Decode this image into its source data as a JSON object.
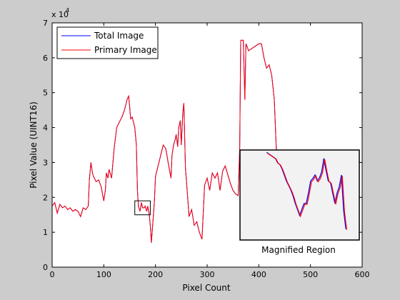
{
  "chart_data": {
    "type": "line",
    "title": "",
    "xlabel": "Pixel Count",
    "ylabel": "Pixel Value (UINT16)",
    "xlim": [
      0,
      600
    ],
    "ylim": [
      0,
      70000
    ],
    "xticks": [
      0,
      100,
      200,
      300,
      400,
      500,
      600
    ],
    "xtick_labels": [
      "0",
      "100",
      "200",
      "300",
      "400",
      "500",
      "600"
    ],
    "yticks": [
      0,
      10000,
      20000,
      30000,
      40000,
      50000,
      60000,
      70000
    ],
    "ytick_labels": [
      "0",
      "1",
      "2",
      "3",
      "4",
      "5",
      "6",
      "7"
    ],
    "y_exponent_label": "x 10",
    "y_exponent": "4",
    "grid": false,
    "legend_position": "top-left",
    "series": [
      {
        "name": "Total Image",
        "color": "#0000ff",
        "x": [
          0,
          5,
          10,
          15,
          20,
          25,
          30,
          35,
          40,
          45,
          50,
          55,
          60,
          65,
          70,
          72,
          75,
          78,
          80,
          85,
          90,
          95,
          100,
          103,
          105,
          108,
          110,
          115,
          120,
          125,
          130,
          135,
          140,
          145,
          148,
          150,
          152,
          155,
          160,
          163,
          165,
          167,
          170,
          173,
          175,
          178,
          180,
          183,
          185,
          188,
          190,
          192,
          195,
          198,
          200,
          205,
          210,
          215,
          220,
          225,
          230,
          232,
          235,
          238,
          240,
          243,
          245,
          248,
          250,
          253,
          255,
          258,
          260,
          265,
          270,
          275,
          280,
          285,
          290,
          295,
          300,
          305,
          310,
          315,
          320,
          325,
          330,
          335,
          340,
          345,
          350,
          355,
          360,
          363,
          365,
          370,
          373,
          375,
          378,
          380,
          385,
          390,
          395,
          400,
          405,
          410,
          415,
          420,
          425,
          430,
          435,
          440,
          445,
          450,
          455,
          460,
          465,
          470,
          475,
          480,
          485,
          490,
          495,
          500,
          505
        ],
        "values": [
          17500,
          18500,
          15500,
          18000,
          17000,
          17500,
          16500,
          17000,
          16000,
          16500,
          16000,
          14500,
          17000,
          16500,
          17500,
          25000,
          30000,
          27000,
          26000,
          24500,
          25000,
          23000,
          19000,
          22000,
          27000,
          25500,
          28000,
          25500,
          34000,
          40000,
          41500,
          43000,
          45000,
          48000,
          49000,
          46000,
          42500,
          43000,
          40000,
          35000,
          22000,
          17500,
          16000,
          18500,
          17000,
          17000,
          17500,
          16000,
          17500,
          15000,
          12000,
          7000,
          13000,
          19000,
          26000,
          29000,
          32000,
          35000,
          34000,
          29500,
          25500,
          32000,
          35000,
          36500,
          38000,
          34500,
          40000,
          42000,
          35000,
          44500,
          47000,
          28500,
          24500,
          14500,
          16500,
          12000,
          13000,
          10000,
          8000,
          23500,
          25500,
          22000,
          27000,
          25500,
          27000,
          22000,
          27500,
          29000,
          26500,
          24000,
          22000,
          21000,
          20500,
          34000,
          65000,
          65000,
          48000,
          64000,
          63000,
          62000,
          62500,
          63000,
          63500,
          64000,
          64000,
          60000,
          57000,
          58000,
          55000,
          48000,
          30000,
          22000,
          18000,
          17000,
          15500,
          16500,
          19500,
          24000,
          26000,
          30000,
          35000,
          38000,
          39500,
          40000,
          40000
        ],
        "visible_x_max": 440
      },
      {
        "name": "Primary Image",
        "color": "#ff0000",
        "x": [
          0,
          5,
          10,
          15,
          20,
          25,
          30,
          35,
          40,
          45,
          50,
          55,
          60,
          65,
          70,
          72,
          75,
          78,
          80,
          85,
          90,
          95,
          100,
          103,
          105,
          108,
          110,
          115,
          120,
          125,
          130,
          135,
          140,
          145,
          148,
          150,
          152,
          155,
          160,
          163,
          165,
          167,
          170,
          173,
          175,
          178,
          180,
          183,
          185,
          188,
          190,
          192,
          195,
          198,
          200,
          205,
          210,
          215,
          220,
          225,
          230,
          232,
          235,
          238,
          240,
          243,
          245,
          248,
          250,
          253,
          255,
          258,
          260,
          265,
          270,
          275,
          280,
          285,
          290,
          295,
          300,
          305,
          310,
          315,
          320,
          325,
          330,
          335,
          340,
          345,
          350,
          355,
          360,
          363,
          365,
          370,
          373,
          375,
          378,
          380,
          385,
          390,
          395,
          400,
          405,
          410,
          415,
          420,
          425,
          430,
          435,
          440,
          445,
          450,
          455,
          460,
          465,
          470,
          475,
          480,
          485,
          490,
          495,
          500,
          505
        ],
        "values": [
          17500,
          18500,
          15500,
          18000,
          17000,
          17500,
          16500,
          17000,
          16000,
          16500,
          16000,
          14500,
          17000,
          16500,
          17500,
          25000,
          30000,
          27000,
          26000,
          24500,
          25000,
          23000,
          19000,
          22000,
          27000,
          25500,
          28000,
          25500,
          34000,
          40000,
          41500,
          43000,
          45000,
          48000,
          49000,
          46000,
          42500,
          43000,
          40000,
          35000,
          22000,
          17500,
          16000,
          18500,
          17000,
          17000,
          17500,
          16000,
          17500,
          15000,
          12000,
          7000,
          13000,
          19000,
          26000,
          29000,
          32000,
          35000,
          34000,
          29500,
          25500,
          32000,
          35000,
          36500,
          38000,
          34500,
          40000,
          42000,
          35000,
          44500,
          47000,
          28500,
          24500,
          14500,
          16500,
          12000,
          13000,
          10000,
          8000,
          23500,
          25500,
          22000,
          27000,
          25500,
          27000,
          22000,
          27500,
          29000,
          26500,
          24000,
          22000,
          21000,
          20500,
          34000,
          65000,
          65000,
          48000,
          64000,
          63000,
          62000,
          62500,
          63000,
          63500,
          64000,
          64000,
          60000,
          57000,
          58000,
          55000,
          48000,
          30000,
          22000,
          18000,
          17000,
          15500,
          16500,
          19500,
          24000,
          26000,
          30000,
          35000,
          38000,
          39500,
          40000,
          40000
        ],
        "visible_x_max": 440
      }
    ],
    "zoom_region": {
      "x_range": [
        160,
        190
      ],
      "y_range": [
        15000,
        19000
      ]
    },
    "inset": {
      "label": "Magnified Region",
      "background": "#f2f2f2",
      "values": [
        33500,
        33000,
        32500,
        32000,
        31500,
        30000,
        29500,
        28000,
        26000,
        24000,
        22500,
        21000,
        19000,
        16500,
        14500,
        12500,
        14500,
        16500,
        16500,
        20000,
        24000,
        24800,
        26000,
        24000,
        25000,
        27000,
        31500,
        27500,
        24000,
        23500,
        20000,
        16500,
        20000,
        22000,
        26000,
        14000,
        8000
      ]
    }
  }
}
